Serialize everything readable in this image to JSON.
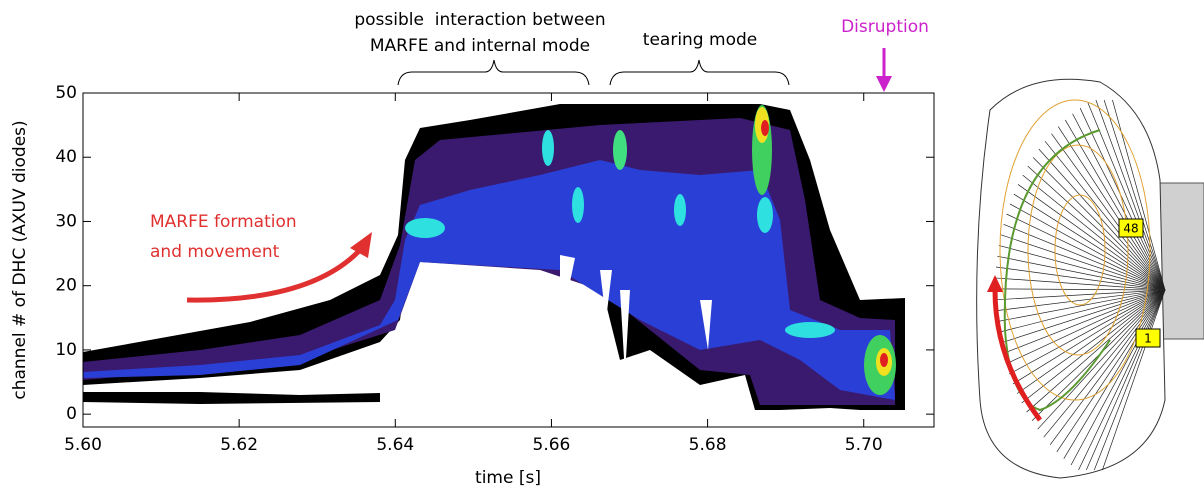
{
  "chart_data": {
    "type": "contour",
    "xlabel": "time [s]",
    "ylabel": "channel # of DHC (AXUV diodes)",
    "xlim": [
      5.6,
      5.709
    ],
    "ylim": [
      -2,
      50
    ],
    "xticks": [
      {
        "value": 5.6,
        "label": "5.60"
      },
      5.62,
      5.64,
      5.66,
      5.68,
      {
        "value": 5.7,
        "label": "5.70"
      }
    ],
    "yticks": [
      0,
      10,
      20,
      30,
      40,
      50
    ],
    "annotations": [
      "possible  interaction between",
      "MARFE and internal mode",
      "tearing mode",
      "Disruption",
      "MARFE formation",
      "and movement"
    ]
  },
  "diagram": {
    "labels": [
      "48",
      "1"
    ]
  }
}
